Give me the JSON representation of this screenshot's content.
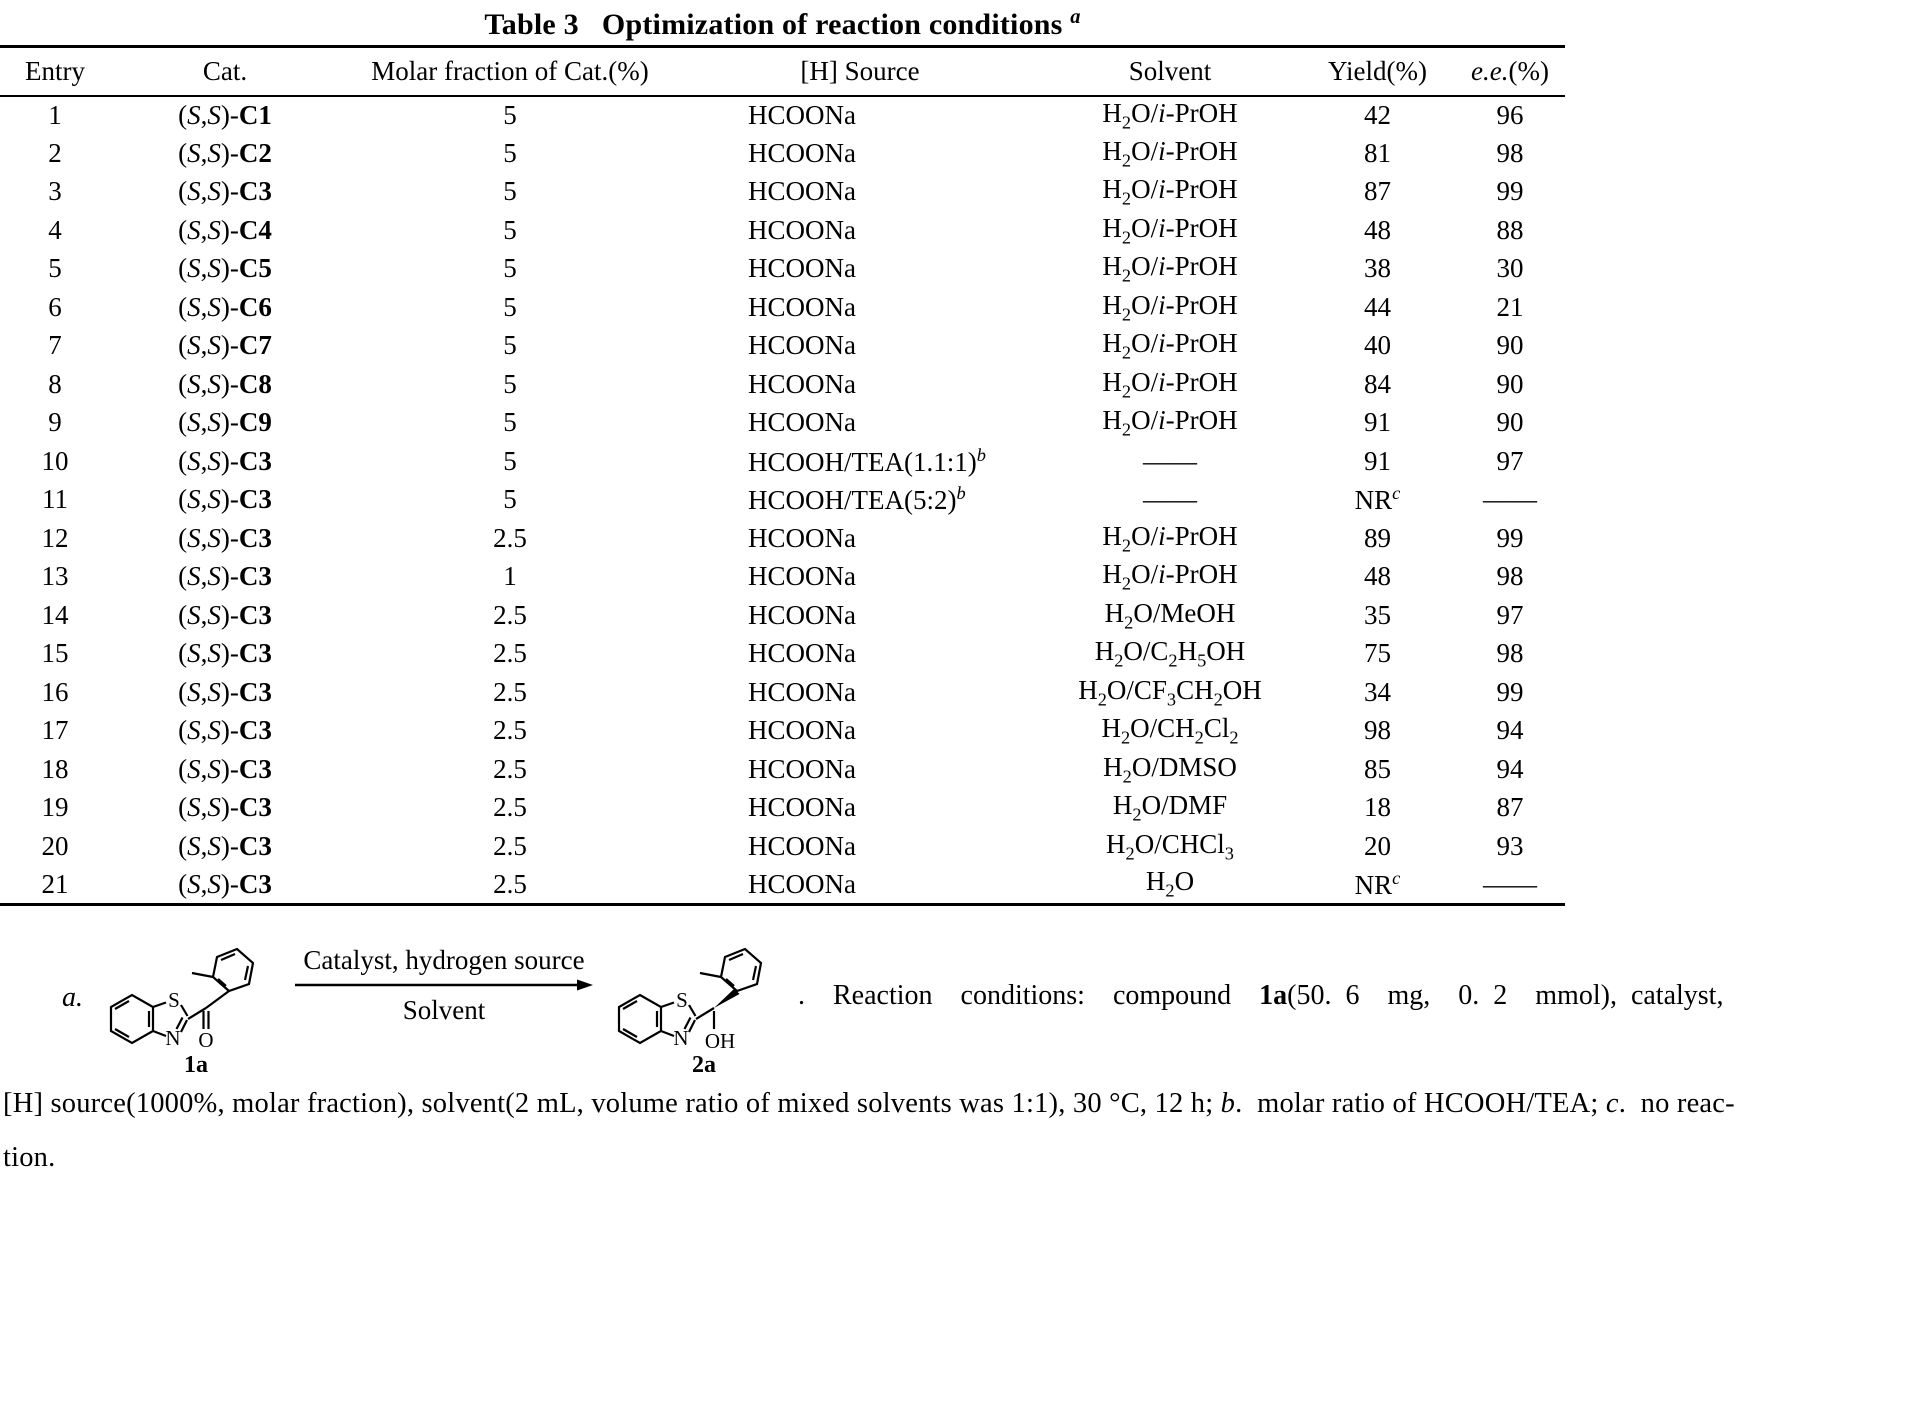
{
  "title_html": "Table 3&nbsp;&nbsp;&nbsp;Optimization of reaction conditions <sup><i>a</i></sup>",
  "table": {
    "col_keys": [
      "entry",
      "cat",
      "molar",
      "hsource",
      "solvent",
      "yield",
      "ee"
    ],
    "headers_html": [
      "Entry",
      "Cat.",
      "Molar fraction of Cat.(%)",
      "[H] Source",
      "Solvent",
      "Yield(%)",
      "<i>e.e.</i>(%)"
    ],
    "rows": [
      [
        "1",
        "(<i>S</i>,<i>S</i>)-<b>C1</b>",
        "5",
        "HCOONa",
        "H<sub>2</sub>O/<i>i</i>-PrOH",
        "42",
        "96"
      ],
      [
        "2",
        "(<i>S</i>,<i>S</i>)-<b>C2</b>",
        "5",
        "HCOONa",
        "H<sub>2</sub>O/<i>i</i>-PrOH",
        "81",
        "98"
      ],
      [
        "3",
        "(<i>S</i>,<i>S</i>)-<b>C3</b>",
        "5",
        "HCOONa",
        "H<sub>2</sub>O/<i>i</i>-PrOH",
        "87",
        "99"
      ],
      [
        "4",
        "(<i>S</i>,<i>S</i>)-<b>C4</b>",
        "5",
        "HCOONa",
        "H<sub>2</sub>O/<i>i</i>-PrOH",
        "48",
        "88"
      ],
      [
        "5",
        "(<i>S</i>,<i>S</i>)-<b>C5</b>",
        "5",
        "HCOONa",
        "H<sub>2</sub>O/<i>i</i>-PrOH",
        "38",
        "30"
      ],
      [
        "6",
        "(<i>S</i>,<i>S</i>)-<b>C6</b>",
        "5",
        "HCOONa",
        "H<sub>2</sub>O/<i>i</i>-PrOH",
        "44",
        "21"
      ],
      [
        "7",
        "(<i>S</i>,<i>S</i>)-<b>C7</b>",
        "5",
        "HCOONa",
        "H<sub>2</sub>O/<i>i</i>-PrOH",
        "40",
        "90"
      ],
      [
        "8",
        "(<i>S</i>,<i>S</i>)-<b>C8</b>",
        "5",
        "HCOONa",
        "H<sub>2</sub>O/<i>i</i>-PrOH",
        "84",
        "90"
      ],
      [
        "9",
        "(<i>S</i>,<i>S</i>)-<b>C9</b>",
        "5",
        "HCOONa",
        "H<sub>2</sub>O/<i>i</i>-PrOH",
        "91",
        "90"
      ],
      [
        "10",
        "(<i>S</i>,<i>S</i>)-<b>C3</b>",
        "5",
        "HCOOH/TEA(1.1:1)<sup><i>b</i></sup>",
        "——",
        "91",
        "97"
      ],
      [
        "11",
        "(<i>S</i>,<i>S</i>)-<b>C3</b>",
        "5",
        "HCOOH/TEA(5:2)<sup><i>b</i></sup>",
        "——",
        "NR<sup><i>c</i></sup>",
        "——"
      ],
      [
        "12",
        "(<i>S</i>,<i>S</i>)-<b>C3</b>",
        "2.5",
        "HCOONa",
        "H<sub>2</sub>O/<i>i</i>-PrOH",
        "89",
        "99"
      ],
      [
        "13",
        "(<i>S</i>,<i>S</i>)-<b>C3</b>",
        "1",
        "HCOONa",
        "H<sub>2</sub>O/<i>i</i>-PrOH",
        "48",
        "98"
      ],
      [
        "14",
        "(<i>S</i>,<i>S</i>)-<b>C3</b>",
        "2.5",
        "HCOONa",
        "H<sub>2</sub>O/MeOH",
        "35",
        "97"
      ],
      [
        "15",
        "(<i>S</i>,<i>S</i>)-<b>C3</b>",
        "2.5",
        "HCOONa",
        "H<sub>2</sub>O/C<sub>2</sub>H<sub>5</sub>OH",
        "75",
        "98"
      ],
      [
        "16",
        "(<i>S</i>,<i>S</i>)-<b>C3</b>",
        "2.5",
        "HCOONa",
        "H<sub>2</sub>O/CF<sub>3</sub>CH<sub>2</sub>OH",
        "34",
        "99"
      ],
      [
        "17",
        "(<i>S</i>,<i>S</i>)-<b>C3</b>",
        "2.5",
        "HCOONa",
        "H<sub>2</sub>O/CH<sub>2</sub>Cl<sub>2</sub>",
        "98",
        "94"
      ],
      [
        "18",
        "(<i>S</i>,<i>S</i>)-<b>C3</b>",
        "2.5",
        "HCOONa",
        "H<sub>2</sub>O/DMSO",
        "85",
        "94"
      ],
      [
        "19",
        "(<i>S</i>,<i>S</i>)-<b>C3</b>",
        "2.5",
        "HCOONa",
        "H<sub>2</sub>O/DMF",
        "18",
        "87"
      ],
      [
        "20",
        "(<i>S</i>,<i>S</i>)-<b>C3</b>",
        "2.5",
        "HCOONa",
        "H<sub>2</sub>O/CHCl<sub>3</sub>",
        "20",
        "93"
      ],
      [
        "21",
        "(<i>S</i>,<i>S</i>)-<b>C3</b>",
        "2.5",
        "HCOONa",
        "H<sub>2</sub>O",
        "NR<sup><i>c</i></sup>",
        "——"
      ]
    ]
  },
  "scheme": {
    "marker": "a.",
    "arrow_text_top": "Catalyst, hydrogen source",
    "arrow_text_bottom": "Solvent",
    "mol1": {
      "s": "S",
      "n": "N",
      "o": "O",
      "label": "1a"
    },
    "mol2": {
      "s": "S",
      "n": "N",
      "oh": "OH",
      "label": "2a"
    },
    "conditions_html": ".&nbsp; Reaction&nbsp; conditions:&nbsp; compound&nbsp; <b>1a</b>(50. 6&nbsp; mg,&nbsp; 0. 2&nbsp; mmol),&nbsp;catalyst,"
  },
  "footnotes": {
    "line1_html": "[H] source(1000%, molar fraction), solvent(2 mL, volume ratio of mixed solvents was 1:1), 30 °C, 12 h; <i>b</i>.&nbsp; molar ratio of HCOOH/TEA; <i>c</i>.&nbsp; no reac-",
    "line2": "tion."
  }
}
